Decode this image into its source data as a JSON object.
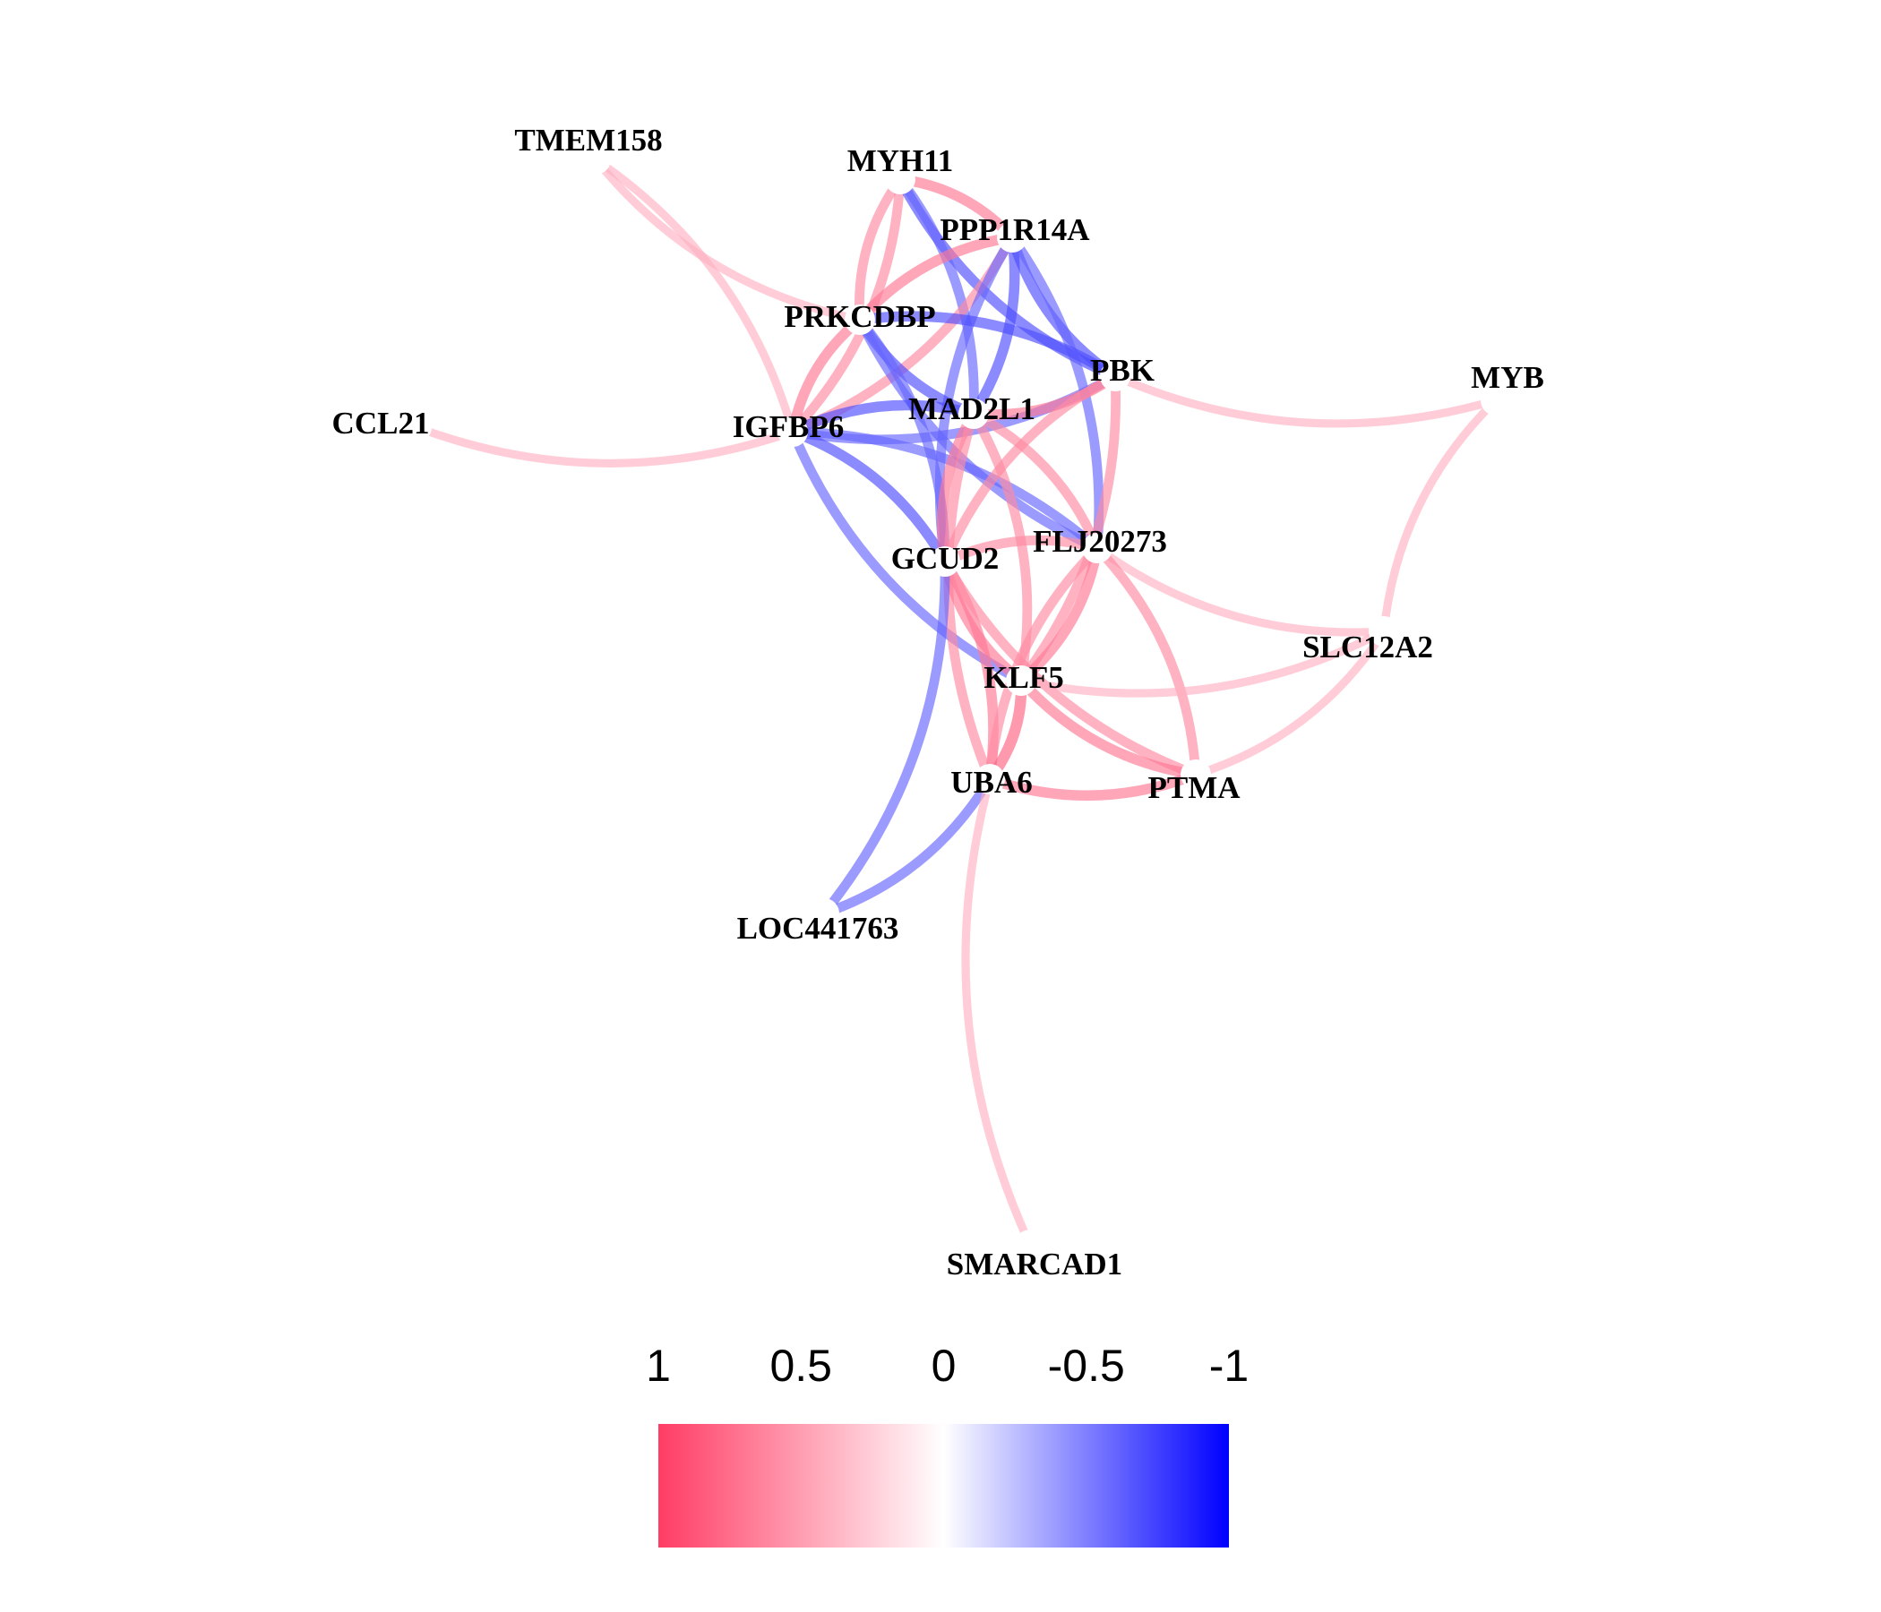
{
  "nodes": [
    {
      "id": "TMEM158",
      "label": "TMEM158"
    },
    {
      "id": "MYH11",
      "label": "MYH11"
    },
    {
      "id": "PPP1R14A",
      "label": "PPP1R14A"
    },
    {
      "id": "PRKCDBP",
      "label": "PRKCDBP"
    },
    {
      "id": "PBK",
      "label": "PBK"
    },
    {
      "id": "MYB",
      "label": "MYB"
    },
    {
      "id": "MAD2L1",
      "label": "MAD2L1"
    },
    {
      "id": "CCL21",
      "label": "CCL21"
    },
    {
      "id": "IGFBP6",
      "label": "IGFBP6"
    },
    {
      "id": "GCUD2",
      "label": "GCUD2"
    },
    {
      "id": "FLJ20273",
      "label": "FLJ20273"
    },
    {
      "id": "SLC12A2",
      "label": "SLC12A2"
    },
    {
      "id": "KLF5",
      "label": "KLF5"
    },
    {
      "id": "UBA6",
      "label": "UBA6"
    },
    {
      "id": "PTMA",
      "label": "PTMA"
    },
    {
      "id": "LOC441763",
      "label": "LOC441763"
    },
    {
      "id": "SMARCAD1",
      "label": "SMARCAD1"
    }
  ],
  "edges": [
    {
      "source": "TMEM158",
      "target": "PRKCDBP",
      "correlation": 0.4
    },
    {
      "source": "TMEM158",
      "target": "IGFBP6",
      "correlation": 0.4
    },
    {
      "source": "CCL21",
      "target": "IGFBP6",
      "correlation": 0.4
    },
    {
      "source": "MYH11",
      "target": "PPP1R14A",
      "correlation": 0.7
    },
    {
      "source": "MYH11",
      "target": "PRKCDBP",
      "correlation": 0.6
    },
    {
      "source": "MYH11",
      "target": "IGFBP6",
      "correlation": 0.6
    },
    {
      "source": "MYH11",
      "target": "PBK",
      "correlation": -0.7
    },
    {
      "source": "MYH11",
      "target": "MAD2L1",
      "correlation": -0.6
    },
    {
      "source": "PPP1R14A",
      "target": "PRKCDBP",
      "correlation": 0.7
    },
    {
      "source": "PPP1R14A",
      "target": "IGFBP6",
      "correlation": 0.6
    },
    {
      "source": "PPP1R14A",
      "target": "PBK",
      "correlation": -0.7
    },
    {
      "source": "PPP1R14A",
      "target": "MAD2L1",
      "correlation": -0.7
    },
    {
      "source": "PPP1R14A",
      "target": "GCUD2",
      "correlation": -0.6
    },
    {
      "source": "PPP1R14A",
      "target": "FLJ20273",
      "correlation": -0.6
    },
    {
      "source": "PRKCDBP",
      "target": "IGFBP6",
      "correlation": 0.7
    },
    {
      "source": "PRKCDBP",
      "target": "PBK",
      "correlation": -0.7
    },
    {
      "source": "PRKCDBP",
      "target": "MAD2L1",
      "correlation": -0.7
    },
    {
      "source": "PRKCDBP",
      "target": "GCUD2",
      "correlation": -0.6
    },
    {
      "source": "PRKCDBP",
      "target": "FLJ20273",
      "correlation": -0.6
    },
    {
      "source": "IGFBP6",
      "target": "MAD2L1",
      "correlation": -0.7
    },
    {
      "source": "IGFBP6",
      "target": "PBK",
      "correlation": -0.6
    },
    {
      "source": "IGFBP6",
      "target": "GCUD2",
      "correlation": -0.7
    },
    {
      "source": "IGFBP6",
      "target": "KLF5",
      "correlation": -0.6
    },
    {
      "source": "IGFBP6",
      "target": "FLJ20273",
      "correlation": -0.6
    },
    {
      "source": "PBK",
      "target": "MYB",
      "correlation": 0.4
    },
    {
      "source": "PBK",
      "target": "MAD2L1",
      "correlation": 0.7
    },
    {
      "source": "PBK",
      "target": "GCUD2",
      "correlation": 0.6
    },
    {
      "source": "PBK",
      "target": "KLF5",
      "correlation": 0.6
    },
    {
      "source": "MAD2L1",
      "target": "GCUD2",
      "correlation": 0.7
    },
    {
      "source": "MAD2L1",
      "target": "KLF5",
      "correlation": 0.6
    },
    {
      "source": "MAD2L1",
      "target": "UBA6",
      "correlation": 0.6
    },
    {
      "source": "MAD2L1",
      "target": "FLJ20273",
      "correlation": 0.6
    },
    {
      "source": "MYB",
      "target": "SLC12A2",
      "correlation": 0.4
    },
    {
      "source": "GCUD2",
      "target": "FLJ20273",
      "correlation": 0.6
    },
    {
      "source": "GCUD2",
      "target": "KLF5",
      "correlation": 0.7
    },
    {
      "source": "GCUD2",
      "target": "UBA6",
      "correlation": 0.7
    },
    {
      "source": "GCUD2",
      "target": "PTMA",
      "correlation": 0.6
    },
    {
      "source": "GCUD2",
      "target": "LOC441763",
      "correlation": -0.6
    },
    {
      "source": "FLJ20273",
      "target": "SLC12A2",
      "correlation": 0.4
    },
    {
      "source": "FLJ20273",
      "target": "KLF5",
      "correlation": 0.7
    },
    {
      "source": "FLJ20273",
      "target": "UBA6",
      "correlation": 0.6
    },
    {
      "source": "FLJ20273",
      "target": "PTMA",
      "correlation": 0.6
    },
    {
      "source": "KLF5",
      "target": "SLC12A2",
      "correlation": 0.4
    },
    {
      "source": "KLF5",
      "target": "UBA6",
      "correlation": 0.8
    },
    {
      "source": "KLF5",
      "target": "PTMA",
      "correlation": 0.7
    },
    {
      "source": "SLC12A2",
      "target": "PTMA",
      "correlation": 0.4
    },
    {
      "source": "UBA6",
      "target": "PTMA",
      "correlation": 0.7
    },
    {
      "source": "UBA6",
      "target": "LOC441763",
      "correlation": -0.6
    },
    {
      "source": "UBA6",
      "target": "SMARCAD1",
      "correlation": 0.4
    }
  ],
  "legend": {
    "ticks": [
      "1",
      "0.5",
      "0",
      "-0.5",
      "-1"
    ],
    "colors": {
      "positive": "#ff3c64",
      "zero": "#ffffff",
      "negative": "#0000ff"
    }
  }
}
